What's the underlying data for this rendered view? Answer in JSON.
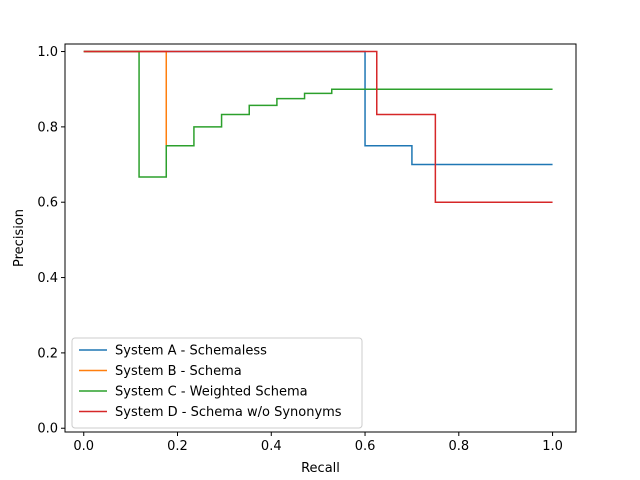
{
  "chart_data": {
    "type": "line",
    "step": "post",
    "title": "",
    "xlabel": "Recall",
    "ylabel": "Precision",
    "xlim": [
      -0.04,
      1.05
    ],
    "ylim": [
      -0.01,
      1.02
    ],
    "xticks": [
      0.0,
      0.2,
      0.4,
      0.6,
      0.8,
      1.0
    ],
    "xtick_labels": [
      "0.0",
      "0.2",
      "0.4",
      "0.6",
      "0.8",
      "1.0"
    ],
    "yticks": [
      0.0,
      0.2,
      0.4,
      0.6,
      0.8,
      1.0
    ],
    "ytick_labels": [
      "0.0",
      "0.2",
      "0.4",
      "0.6",
      "0.8",
      "1.0"
    ],
    "grid": false,
    "legend_position": "lower-left",
    "series": [
      {
        "name": "System A - Schemaless",
        "color": "#1f77b4",
        "x": [
          0.0,
          0.6,
          0.6,
          0.7,
          0.7,
          1.0
        ],
        "y": [
          1.0,
          1.0,
          0.75,
          0.75,
          0.7,
          0.7
        ]
      },
      {
        "name": "System B - Schema",
        "color": "#ff7f0e",
        "x": [
          0.0,
          0.176,
          0.176
        ],
        "y": [
          1.0,
          1.0,
          0.75
        ]
      },
      {
        "name": "System C - Weighted Schema",
        "color": "#2ca02c",
        "x": [
          0.0,
          0.118,
          0.118,
          0.176,
          0.176,
          0.235,
          0.235,
          0.294,
          0.294,
          0.353,
          0.353,
          0.412,
          0.412,
          0.471,
          0.471,
          0.529,
          0.529,
          1.0
        ],
        "y": [
          1.0,
          1.0,
          0.667,
          0.667,
          0.75,
          0.75,
          0.8,
          0.8,
          0.833,
          0.833,
          0.857,
          0.857,
          0.875,
          0.875,
          0.889,
          0.889,
          0.9,
          0.9
        ]
      },
      {
        "name": "System D - Schema w/o Synonyms",
        "color": "#d62728",
        "x": [
          0.0,
          0.625,
          0.625,
          0.75,
          0.75,
          1.0
        ],
        "y": [
          1.0,
          1.0,
          0.833,
          0.833,
          0.6,
          0.6
        ]
      }
    ]
  }
}
